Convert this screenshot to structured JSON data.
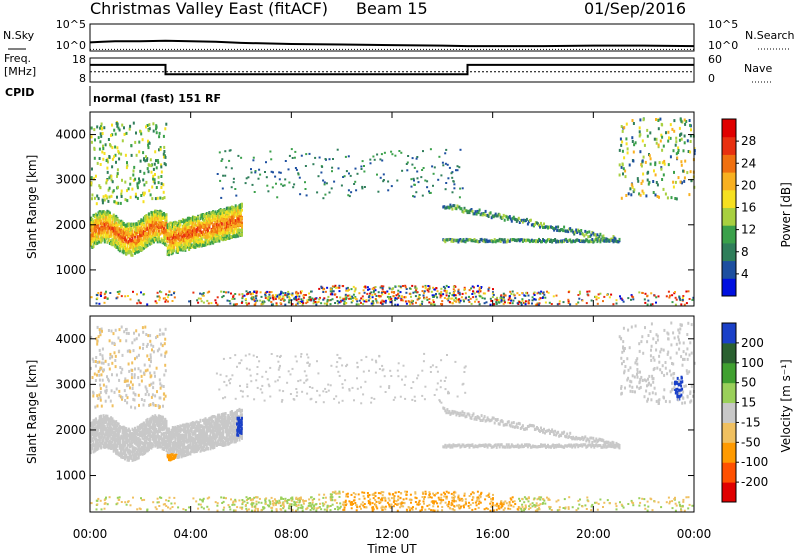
{
  "header": {
    "site": "Christmas Valley East (fitACF)",
    "beam": "Beam 15",
    "date": "01/Sep/2016"
  },
  "labels": {
    "nsky": "N.Sky",
    "nsearch": "N.Search",
    "freq_line1": "Freq.",
    "freq_line2": "[MHz]",
    "nave": "Nave",
    "cpid": "CPID",
    "mode": "normal (fast) 151 RF"
  },
  "chart_data": [
    {
      "type": "line",
      "panel": "noise",
      "y_left_ticks": [
        "10^5",
        "10^0"
      ],
      "y_right_ticks": [
        "10^5",
        "10^0"
      ],
      "series": [
        {
          "name": "N.Sky",
          "x": [
            0,
            0.5,
            1,
            2,
            3,
            4,
            5,
            6,
            8,
            10,
            12,
            14,
            15,
            16,
            18,
            20,
            22,
            24
          ],
          "values": [
            1.6,
            1.7,
            1.8,
            1.8,
            1.9,
            1.8,
            1.7,
            1.5,
            1.3,
            1.2,
            1.1,
            1.0,
            0.9,
            0.9,
            0.9,
            1.0,
            1.0,
            0.9
          ]
        },
        {
          "name": "N.Search",
          "x": [
            0,
            24
          ],
          "values": [
            0.3,
            0.3
          ]
        }
      ]
    },
    {
      "type": "line",
      "panel": "frequency",
      "y_left_ticks": [
        "18",
        "8"
      ],
      "y_right_ticks": [
        "60",
        "0"
      ],
      "series": [
        {
          "name": "Freq. [MHz]",
          "x": [
            0,
            3,
            3,
            15,
            15,
            24
          ],
          "values": [
            16,
            16,
            10.5,
            10.5,
            16,
            16
          ]
        },
        {
          "name": "Nave",
          "x": [
            0,
            24
          ],
          "values": [
            12,
            12
          ]
        }
      ]
    },
    {
      "type": "heatmap",
      "panel": "power",
      "ylabel": "Slant Range [km]",
      "y_ticks": [
        1000,
        2000,
        3000,
        4000
      ],
      "colorbar": {
        "label": "Power [dB]",
        "ticks": [
          4,
          8,
          12,
          16,
          20,
          24,
          28
        ]
      },
      "x_ticks": [
        "00:00",
        "04:00",
        "08:00",
        "12:00",
        "16:00",
        "20:00",
        "00:00"
      ]
    },
    {
      "type": "heatmap",
      "panel": "velocity",
      "ylabel": "Slant Range [km]",
      "xlabel": "Time UT",
      "y_ticks": [
        1000,
        2000,
        3000,
        4000
      ],
      "colorbar": {
        "label": "Velocity [m s⁻¹]",
        "ticks": [
          200,
          100,
          50,
          15,
          -15,
          -50,
          -100,
          -200
        ]
      },
      "x_ticks": [
        "00:00",
        "04:00",
        "08:00",
        "12:00",
        "16:00",
        "20:00",
        "00:00"
      ]
    }
  ],
  "colors": {
    "power_scale": [
      "#0010e0",
      "#1d4fa0",
      "#2f7e5a",
      "#3aa04a",
      "#a8d040",
      "#f6e020",
      "#f8b020",
      "#f07010",
      "#e83010",
      "#e00000"
    ],
    "velocity_scale": [
      "#e00000",
      "#ff5000",
      "#ff9a00",
      "#f0c060",
      "#c8c8c8",
      "#9ad05a",
      "#40a030",
      "#2a6030",
      "#1a40c8"
    ]
  }
}
